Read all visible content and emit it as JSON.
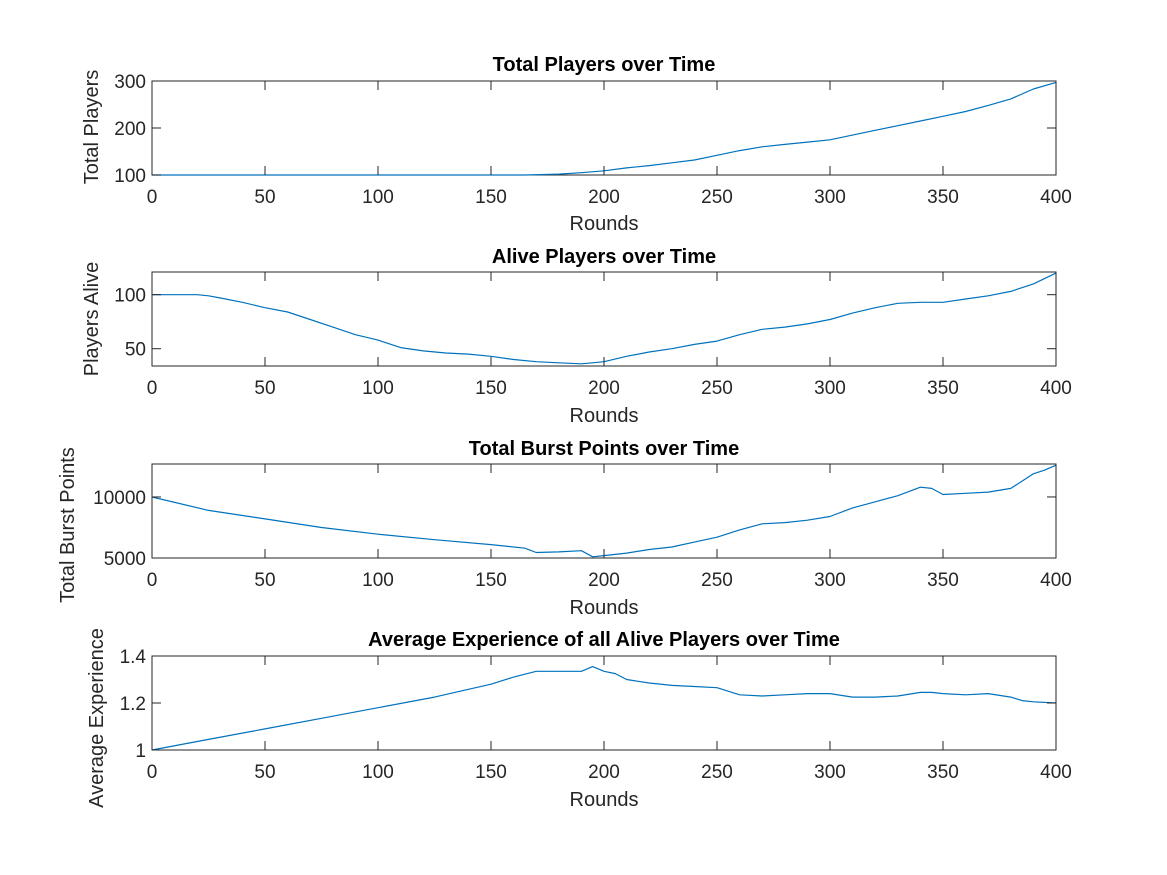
{
  "colors": {
    "line": "#0072BD",
    "axes": "#262626",
    "background": "#ffffff"
  },
  "chart_data": [
    {
      "type": "line",
      "title": "Total Players over Time",
      "xlabel": "Rounds",
      "ylabel": "Total Players",
      "xlim": [
        0,
        400
      ],
      "ylim": [
        100,
        300
      ],
      "xticks": [
        0,
        50,
        100,
        150,
        200,
        250,
        300,
        350,
        400
      ],
      "yticks": [
        100,
        200,
        300
      ],
      "grid": false,
      "series": [
        {
          "x": [
            0,
            50,
            100,
            150,
            165,
            180,
            190,
            200,
            210,
            220,
            230,
            240,
            250,
            260,
            270,
            280,
            290,
            300,
            310,
            320,
            330,
            340,
            350,
            360,
            370,
            380,
            390,
            400
          ],
          "y": [
            100,
            100,
            100,
            100,
            100,
            102,
            105,
            109,
            115,
            120,
            126,
            132,
            142,
            152,
            160,
            165,
            170,
            175,
            185,
            195,
            205,
            215,
            225,
            235,
            248,
            262,
            283,
            297
          ]
        }
      ]
    },
    {
      "type": "line",
      "title": "Alive Players over Time",
      "xlabel": "Rounds",
      "ylabel": "Players Alive",
      "xlim": [
        0,
        400
      ],
      "ylim": [
        34,
        121
      ],
      "xticks": [
        0,
        50,
        100,
        150,
        200,
        250,
        300,
        350,
        400
      ],
      "yticks": [
        50,
        100
      ],
      "grid": false,
      "series": [
        {
          "x": [
            0,
            10,
            20,
            25,
            30,
            40,
            50,
            60,
            70,
            80,
            90,
            100,
            110,
            120,
            130,
            140,
            150,
            160,
            170,
            180,
            190,
            195,
            200,
            210,
            220,
            230,
            240,
            250,
            260,
            270,
            280,
            290,
            300,
            310,
            320,
            330,
            340,
            350,
            360,
            370,
            380,
            390,
            400
          ],
          "y": [
            100,
            100,
            100,
            99,
            97,
            93,
            88,
            84,
            77,
            70,
            63,
            58,
            51,
            48,
            46,
            45,
            43,
            40,
            38,
            37,
            36,
            37,
            38,
            43,
            47,
            50,
            54,
            57,
            63,
            68,
            70,
            73,
            77,
            83,
            88,
            92,
            93,
            93,
            96,
            99,
            103,
            110,
            120
          ]
        }
      ]
    },
    {
      "type": "line",
      "title": "Total Burst Points over Time",
      "xlabel": "Rounds",
      "ylabel": "Total Burst Points",
      "xlim": [
        0,
        400
      ],
      "ylim": [
        5000,
        12700
      ],
      "xticks": [
        0,
        50,
        100,
        150,
        200,
        250,
        300,
        350,
        400
      ],
      "yticks": [
        5000,
        10000
      ],
      "grid": false,
      "series": [
        {
          "x": [
            0,
            25,
            50,
            75,
            100,
            125,
            150,
            165,
            170,
            180,
            190,
            195,
            200,
            210,
            220,
            230,
            240,
            250,
            260,
            270,
            280,
            290,
            300,
            310,
            320,
            330,
            340,
            345,
            350,
            360,
            370,
            380,
            385,
            390,
            395,
            400
          ],
          "y": [
            10000,
            8900,
            8200,
            7500,
            6950,
            6500,
            6100,
            5800,
            5450,
            5500,
            5600,
            5100,
            5200,
            5400,
            5700,
            5900,
            6300,
            6700,
            7300,
            7800,
            7900,
            8100,
            8400,
            9100,
            9600,
            10100,
            10800,
            10700,
            10200,
            10300,
            10400,
            10700,
            11300,
            11900,
            12200,
            12600
          ]
        }
      ]
    },
    {
      "type": "line",
      "title": "Average Experience of all Alive Players over Time",
      "xlabel": "Rounds",
      "ylabel": "Average Experience",
      "xlim": [
        0,
        400
      ],
      "ylim": [
        1,
        1.4
      ],
      "xticks": [
        0,
        50,
        100,
        150,
        200,
        250,
        300,
        350,
        400
      ],
      "yticks": [
        1,
        1.2,
        1.4
      ],
      "grid": false,
      "series": [
        {
          "x": [
            0,
            25,
            50,
            75,
            100,
            125,
            150,
            160,
            170,
            180,
            190,
            195,
            200,
            205,
            210,
            220,
            230,
            240,
            250,
            260,
            270,
            280,
            290,
            300,
            310,
            320,
            330,
            340,
            345,
            350,
            360,
            370,
            380,
            385,
            390,
            400
          ],
          "y": [
            1.0,
            1.045,
            1.09,
            1.135,
            1.18,
            1.225,
            1.28,
            1.31,
            1.335,
            1.335,
            1.335,
            1.355,
            1.335,
            1.325,
            1.3,
            1.285,
            1.275,
            1.27,
            1.265,
            1.235,
            1.23,
            1.235,
            1.24,
            1.24,
            1.225,
            1.225,
            1.23,
            1.245,
            1.245,
            1.24,
            1.235,
            1.24,
            1.225,
            1.21,
            1.205,
            1.2
          ]
        }
      ]
    }
  ]
}
